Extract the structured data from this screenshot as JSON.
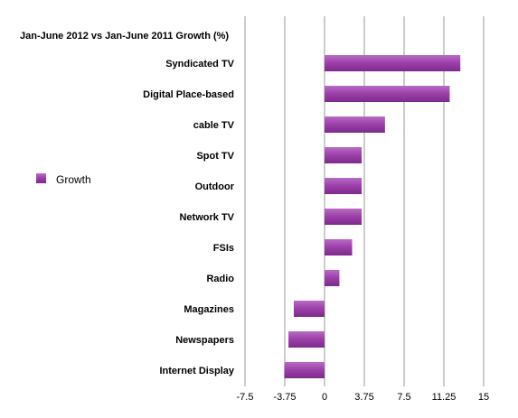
{
  "chart_data": {
    "type": "bar",
    "orientation": "horizontal",
    "title": "Jan-June 2012 vs Jan-June 2011 Growth  (%)",
    "categories": [
      "Syndicated TV",
      "Digital Place-based",
      "cable TV",
      "Spot TV",
      "Outdoor",
      "Network TV",
      "FSIs",
      "Radio",
      "Magazines",
      "Newspapers",
      "Internet Display"
    ],
    "series": [
      {
        "name": "Growth",
        "values": [
          12.8,
          11.8,
          5.7,
          3.5,
          3.5,
          3.5,
          2.6,
          1.4,
          -2.9,
          -3.4,
          -3.8
        ],
        "color": "#9b3fa8"
      }
    ],
    "xlim": [
      -7.5,
      15
    ],
    "x_ticks": [
      "-7.5",
      "-3.75",
      "0",
      "3.75",
      "7.5",
      "11.25",
      "15"
    ],
    "grid": "vertical",
    "legend": "left"
  }
}
